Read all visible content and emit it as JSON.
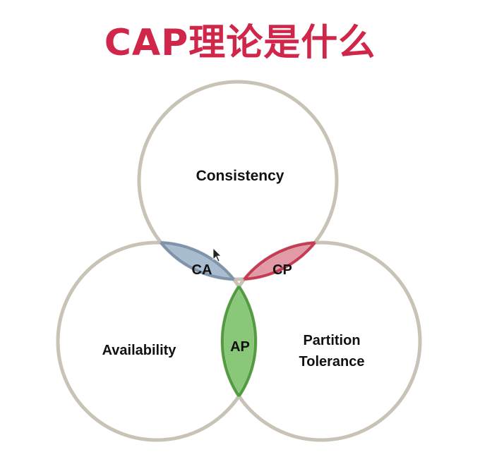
{
  "title": "CAP理论是什么",
  "colors": {
    "title": "#d0264a",
    "circle_stroke": "#c8c3b6",
    "ca_fill": "#9fb6cb",
    "ca_stroke": "#7c94ad",
    "cp_fill": "#df8f9c",
    "cp_stroke": "#c83a55",
    "ap_fill": "#7cc16a",
    "ap_stroke": "#4f9e3d"
  },
  "diagram": {
    "consistency_label": "Consistency",
    "availability_label": "Availability",
    "partition_label_line1": "Partition",
    "partition_label_line2": "Tolerance",
    "ca_label": "CA",
    "cp_label": "CP",
    "ap_label": "AP"
  }
}
